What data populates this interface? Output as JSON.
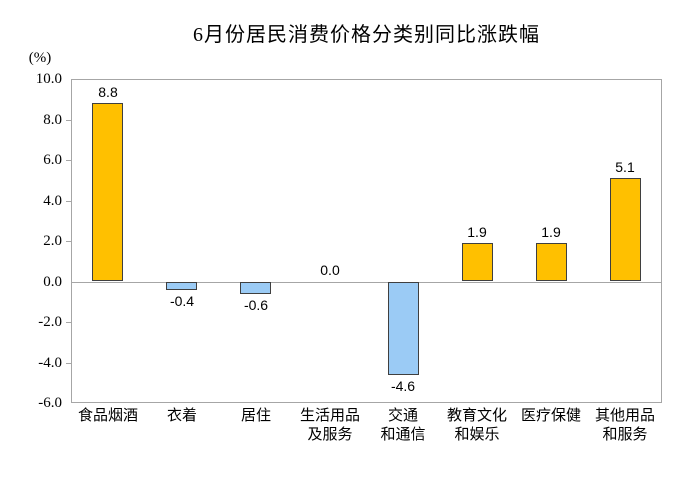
{
  "title": "6月份居民消费价格分类别同比涨跌幅",
  "unit_label": "(%)",
  "colors": {
    "positive_bar_fill": "#FFC000",
    "negative_bar_fill": "#9BCBF5",
    "bar_border": "#3F3F3F",
    "axis_line": "#A6A6A6",
    "text": "#000000",
    "background": "#FFFFFF"
  },
  "chart_data": {
    "type": "bar",
    "title": "6月份居民消费价格分类别同比涨跌幅",
    "xlabel": "",
    "ylabel": "(%)",
    "categories": [
      "食品烟酒",
      "衣着",
      "居住",
      "生活用品\n及服务",
      "交通\n和通信",
      "教育文化\n和娱乐",
      "医疗保健",
      "其他用品\n和服务"
    ],
    "values": [
      8.8,
      -0.4,
      -0.6,
      0.0,
      -4.6,
      1.9,
      1.9,
      5.1
    ],
    "value_labels": [
      "8.8",
      "-0.4",
      "-0.6",
      "0.0",
      "-4.6",
      "1.9",
      "1.9",
      "5.1"
    ],
    "ylim": [
      -6.0,
      10.0
    ],
    "ytick_step": 2.0,
    "ytick_labels": [
      "10.0",
      "8.0",
      "6.0",
      "4.0",
      "2.0",
      "0.0",
      "-2.0",
      "-4.0",
      "-6.0"
    ],
    "grid": false,
    "legend_position": "none"
  }
}
